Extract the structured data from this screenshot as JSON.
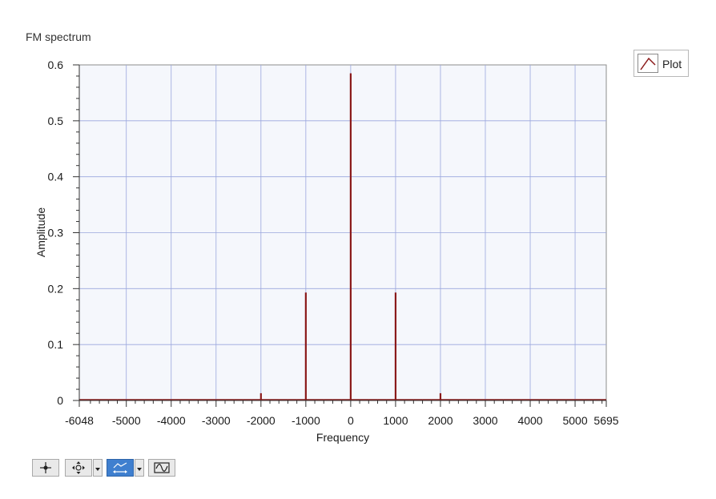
{
  "graph": {
    "title": "FM spectrum",
    "legend": {
      "label": "Plot",
      "color": "#8b1a1a"
    }
  },
  "colors": {
    "plot_bg": "#f5f7fc",
    "grid": "#9aa6dd",
    "series": "#8b1a1a",
    "axis": "#333333"
  },
  "toolbar": {
    "tools": [
      {
        "name": "cursor-tool",
        "icon": "crosshair-icon",
        "active": false
      },
      {
        "name": "pan-tool",
        "icon": "pan-move-icon",
        "active": false,
        "dropdown": true
      },
      {
        "name": "zoom-tool",
        "icon": "zoom-icon",
        "active": true,
        "dropdown": true
      },
      {
        "name": "autoscale-tool",
        "icon": "autoscale-wave-icon",
        "active": false
      }
    ]
  },
  "chart_data": {
    "type": "bar",
    "title": "FM spectrum",
    "xlabel": "Frequency",
    "ylabel": "Amplitude",
    "xlim": [
      -6048,
      5695
    ],
    "ylim": [
      0,
      0.6
    ],
    "x_ticks": [
      -6048,
      -5000,
      -4000,
      -3000,
      -2000,
      -1000,
      0,
      1000,
      2000,
      3000,
      4000,
      5000,
      5695
    ],
    "x_tick_labels": [
      "-6048",
      "-5000",
      "-4000",
      "-3000",
      "-2000",
      "-1000",
      "0",
      "1000",
      "2000",
      "3000",
      "4000",
      "5000",
      "5695"
    ],
    "y_ticks": [
      0,
      0.1,
      0.2,
      0.3,
      0.4,
      0.5,
      0.6
    ],
    "y_tick_labels": [
      "0",
      "0.1",
      "0.2",
      "0.3",
      "0.4",
      "0.5",
      "0.6"
    ],
    "grid": true,
    "legend_position": "top-right",
    "series": [
      {
        "name": "Plot",
        "color": "#8b1a1a",
        "x": [
          -2000,
          -1000,
          0,
          1000,
          2000
        ],
        "values": [
          0.013,
          0.193,
          0.585,
          0.193,
          0.013
        ]
      }
    ]
  }
}
